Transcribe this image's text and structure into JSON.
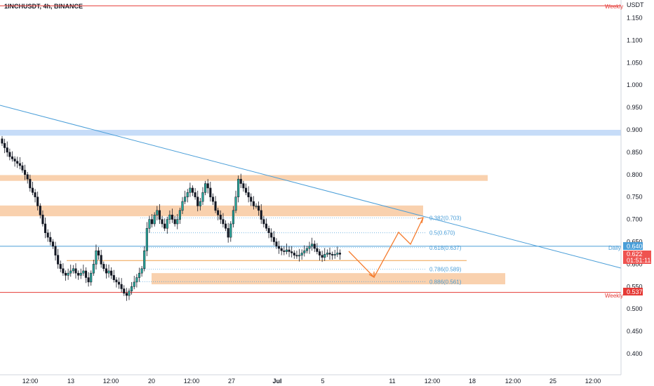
{
  "header": {
    "symbol_title": "1INCHUSDT, 4h, BINANCE",
    "currency": "USDT"
  },
  "price_axis": {
    "ticks": [
      "1.150",
      "1.100",
      "1.050",
      "1.000",
      "0.950",
      "0.900",
      "0.850",
      "0.800",
      "0.750",
      "0.700",
      "0.650",
      "0.600",
      "0.550",
      "0.500",
      "0.450",
      "0.400"
    ]
  },
  "time_axis": {
    "ticks": [
      "12:00",
      "13",
      "12:00",
      "20",
      "12:00",
      "27",
      "Jul",
      "5",
      "11",
      "12:00",
      "18",
      "12:00",
      "25",
      "12:00"
    ]
  },
  "tags": {
    "weekly_top": "Weekly",
    "weekly_bottom": "Weekly",
    "daily": "Daily",
    "daily_price": "0.640",
    "last_price": "0.622",
    "countdown": "01:51:11",
    "weekly_price": "0.537"
  },
  "fib": [
    "0.382(0.703)",
    "0.5(0.670)",
    "0.618(0.637)",
    "0.786(0.589)",
    "0.886(0.561)"
  ],
  "colors": {
    "up": "#26a69a",
    "down": "#ef5350",
    "candle": "#131722",
    "zone": "#f8c9a0",
    "blue_zone": "#bcd6f7",
    "trend": "#4a9ed8",
    "red": "#e53935",
    "arrow": "#f57c2e",
    "fib": "#4a9ed8"
  },
  "chart_data": {
    "type": "candlestick",
    "symbol": "1INCHUSDT",
    "interval": "4h",
    "exchange": "BINANCE",
    "ylim": [
      0.37,
      1.19
    ],
    "price_ticks": [
      1.15,
      1.1,
      1.05,
      1.0,
      0.95,
      0.9,
      0.85,
      0.8,
      0.75,
      0.7,
      0.65,
      0.6,
      0.55,
      0.5,
      0.45,
      0.4
    ],
    "horizontal_levels": [
      {
        "label": "Weekly",
        "price": 1.177
      },
      {
        "label": "Daily",
        "price": 0.64
      },
      {
        "label": "Weekly",
        "price": 0.537
      }
    ],
    "zones": [
      {
        "from": 0.887,
        "to": 0.9
      },
      {
        "from": 0.786,
        "to": 0.799
      },
      {
        "from": 0.707,
        "to": 0.731
      },
      {
        "from": 0.555,
        "to": 0.58
      }
    ],
    "fib_levels": [
      {
        "ratio": 0.382,
        "price": 0.703
      },
      {
        "ratio": 0.5,
        "price": 0.67
      },
      {
        "ratio": 0.618,
        "price": 0.637
      },
      {
        "ratio": 0.786,
        "price": 0.589
      },
      {
        "ratio": 0.886,
        "price": 0.561
      }
    ],
    "last_price": 0.622,
    "close_series": [
      0.87,
      0.86,
      0.85,
      0.84,
      0.835,
      0.83,
      0.825,
      0.82,
      0.81,
      0.8,
      0.79,
      0.77,
      0.76,
      0.75,
      0.73,
      0.71,
      0.69,
      0.67,
      0.66,
      0.65,
      0.64,
      0.62,
      0.6,
      0.59,
      0.58,
      0.575,
      0.58,
      0.585,
      0.59,
      0.58,
      0.575,
      0.58,
      0.585,
      0.57,
      0.56,
      0.58,
      0.6,
      0.63,
      0.62,
      0.6,
      0.59,
      0.58,
      0.585,
      0.575,
      0.565,
      0.56,
      0.555,
      0.545,
      0.535,
      0.53,
      0.54,
      0.55,
      0.56,
      0.57,
      0.58,
      0.59,
      0.63,
      0.68,
      0.7,
      0.69,
      0.71,
      0.72,
      0.7,
      0.69,
      0.68,
      0.7,
      0.71,
      0.7,
      0.69,
      0.7,
      0.72,
      0.74,
      0.75,
      0.76,
      0.77,
      0.76,
      0.75,
      0.73,
      0.74,
      0.76,
      0.78,
      0.77,
      0.75,
      0.74,
      0.72,
      0.71,
      0.7,
      0.69,
      0.68,
      0.66,
      0.69,
      0.72,
      0.75,
      0.79,
      0.78,
      0.77,
      0.76,
      0.75,
      0.74,
      0.73,
      0.73,
      0.72,
      0.7,
      0.69,
      0.68,
      0.67,
      0.66,
      0.65,
      0.64,
      0.635,
      0.63,
      0.628,
      0.632,
      0.628,
      0.625,
      0.62,
      0.618,
      0.62,
      0.625,
      0.63,
      0.635,
      0.64,
      0.645,
      0.635,
      0.628,
      0.62,
      0.615,
      0.622,
      0.625,
      0.622,
      0.62,
      0.622,
      0.625,
      0.622
    ]
  }
}
